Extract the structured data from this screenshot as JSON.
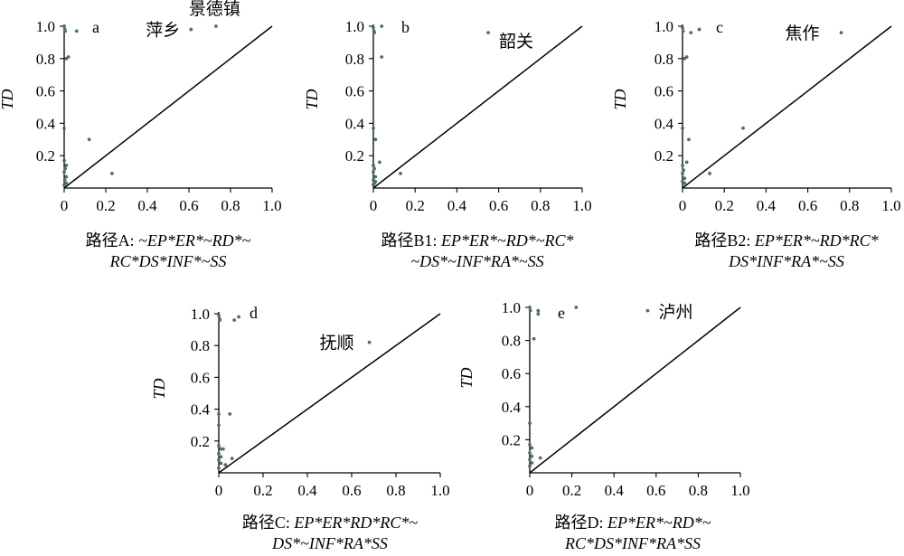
{
  "chart_data": [
    {
      "type": "scatter",
      "panel_label": "a",
      "ylabel": "TD",
      "xlabel_lines": [
        [
          "路径A: ",
          "~EP*ER*~RD*~"
        ],
        [
          "",
          "RC*DS*INF*~SS"
        ]
      ],
      "xlim": [
        0,
        1.0
      ],
      "ylim": [
        0,
        1.0
      ],
      "xticks": [
        "0",
        "0.2",
        "0.4",
        "0.6",
        "0.8",
        "1.0"
      ],
      "yticks": [
        "0.2",
        "0.4",
        "0.6",
        "0.8",
        "1.0"
      ],
      "diagonal": true,
      "points": [
        [
          0.0,
          1.0
        ],
        [
          0.003,
          0.98
        ],
        [
          0.005,
          0.97
        ],
        [
          0.06,
          0.97
        ],
        [
          0.61,
          0.98
        ],
        [
          0.73,
          1.0
        ],
        [
          0.02,
          0.81
        ],
        [
          0.01,
          0.8
        ],
        [
          0.0,
          0.37
        ],
        [
          0.12,
          0.3
        ],
        [
          0.23,
          0.09
        ],
        [
          0.0,
          0.17
        ],
        [
          0.01,
          0.14
        ],
        [
          0.005,
          0.12
        ],
        [
          0.0,
          0.1
        ],
        [
          0.01,
          0.07
        ],
        [
          0.003,
          0.05
        ],
        [
          0.01,
          0.03
        ],
        [
          0.0,
          0.02
        ]
      ],
      "annotations": [
        {
          "text": "萍乡",
          "x": 0.61,
          "y": 0.98
        },
        {
          "text": "景德镇",
          "x": 0.73,
          "y": 1.0
        }
      ]
    },
    {
      "type": "scatter",
      "panel_label": "b",
      "ylabel": "TD",
      "xlabel_lines": [
        [
          "路径B1: ",
          "EP*ER*~RD*~RC*"
        ],
        [
          "",
          "~DS*~INF*RA*~SS"
        ]
      ],
      "xlim": [
        0,
        1.0
      ],
      "ylim": [
        0,
        1.0
      ],
      "xticks": [
        "0",
        "0.2",
        "0.4",
        "0.6",
        "0.8",
        "1.0"
      ],
      "yticks": [
        "0.2",
        "0.4",
        "0.6",
        "0.8",
        "1.0"
      ],
      "diagonal": true,
      "points": [
        [
          0.0,
          0.99
        ],
        [
          0.003,
          0.97
        ],
        [
          0.005,
          0.96
        ],
        [
          0.04,
          1.0
        ],
        [
          0.55,
          0.96
        ],
        [
          0.04,
          0.81
        ],
        [
          0.0,
          0.37
        ],
        [
          0.01,
          0.3
        ],
        [
          0.03,
          0.16
        ],
        [
          0.13,
          0.09
        ],
        [
          0.0,
          0.14
        ],
        [
          0.005,
          0.12
        ],
        [
          0.0,
          0.1
        ],
        [
          0.01,
          0.07
        ],
        [
          0.0,
          0.05
        ],
        [
          0.01,
          0.04
        ],
        [
          0.005,
          0.03
        ],
        [
          0.0,
          0.02
        ]
      ],
      "annotations": [
        {
          "text": "韶关",
          "x": 0.55,
          "y": 0.96
        }
      ]
    },
    {
      "type": "scatter",
      "panel_label": "c",
      "ylabel": "TD",
      "xlabel_lines": [
        [
          "路径B2: ",
          "EP*ER*~RD*RC*"
        ],
        [
          "",
          "DS*INF*RA*~SS"
        ]
      ],
      "xlim": [
        0,
        1.0
      ],
      "ylim": [
        0,
        1.0
      ],
      "xticks": [
        "0",
        "0.2",
        "0.4",
        "0.6",
        "0.8",
        "1.0"
      ],
      "yticks": [
        "0.2",
        "0.4",
        "0.6",
        "0.8",
        "1.0"
      ],
      "diagonal": true,
      "points": [
        [
          0.0,
          0.99
        ],
        [
          0.003,
          0.97
        ],
        [
          0.04,
          0.96
        ],
        [
          0.08,
          0.98
        ],
        [
          0.76,
          0.96
        ],
        [
          0.02,
          0.81
        ],
        [
          0.01,
          0.8
        ],
        [
          0.0,
          0.37
        ],
        [
          0.29,
          0.37
        ],
        [
          0.03,
          0.3
        ],
        [
          0.02,
          0.16
        ],
        [
          0.13,
          0.09
        ],
        [
          0.0,
          0.14
        ],
        [
          0.005,
          0.11
        ],
        [
          0.0,
          0.09
        ],
        [
          0.01,
          0.06
        ],
        [
          0.0,
          0.04
        ],
        [
          0.01,
          0.03
        ]
      ],
      "annotations": [
        {
          "text": "焦作",
          "x": 0.76,
          "y": 0.96
        }
      ]
    },
    {
      "type": "scatter",
      "panel_label": "d",
      "ylabel": "TD",
      "xlabel_lines": [
        [
          "路径C: ",
          "EP*ER*RD*RC*~"
        ],
        [
          "",
          "DS*~INF*RA*SS"
        ]
      ],
      "xlim": [
        0,
        1.0
      ],
      "ylim": [
        0,
        1.0
      ],
      "xticks": [
        "0",
        "0.2",
        "0.4",
        "0.6",
        "0.8",
        "1.0"
      ],
      "yticks": [
        "0.2",
        "0.4",
        "0.6",
        "0.8",
        "1.0"
      ],
      "diagonal": true,
      "points": [
        [
          0.0,
          0.99
        ],
        [
          0.003,
          0.97
        ],
        [
          0.005,
          0.96
        ],
        [
          0.07,
          0.96
        ],
        [
          0.09,
          0.98
        ],
        [
          0.68,
          0.82
        ],
        [
          0.0,
          0.37
        ],
        [
          0.05,
          0.37
        ],
        [
          0.0,
          0.3
        ],
        [
          0.0,
          0.17
        ],
        [
          0.01,
          0.15
        ],
        [
          0.02,
          0.15
        ],
        [
          0.0,
          0.12
        ],
        [
          0.01,
          0.1
        ],
        [
          0.0,
          0.08
        ],
        [
          0.01,
          0.06
        ],
        [
          0.03,
          0.05
        ],
        [
          0.0,
          0.03
        ],
        [
          0.06,
          0.09
        ]
      ],
      "annotations": [
        {
          "text": "抚顺",
          "x": 0.68,
          "y": 0.82
        }
      ]
    },
    {
      "type": "scatter",
      "panel_label": "e",
      "ylabel": "TD",
      "xlabel_lines": [
        [
          "路径D: ",
          "EP*ER*~RD*~"
        ],
        [
          "",
          "RC*DS*INF*RA*SS"
        ]
      ],
      "xlim": [
        0,
        1.0
      ],
      "ylim": [
        0,
        1.0
      ],
      "xticks": [
        "0",
        "0.2",
        "0.4",
        "0.6",
        "0.8",
        "1.0"
      ],
      "yticks": [
        "0.2",
        "0.4",
        "0.6",
        "0.8",
        "1.0"
      ],
      "diagonal": true,
      "points": [
        [
          0.0,
          1.0
        ],
        [
          0.003,
          0.98
        ],
        [
          0.04,
          0.98
        ],
        [
          0.04,
          0.96
        ],
        [
          0.22,
          1.0
        ],
        [
          0.56,
          0.98
        ],
        [
          0.02,
          0.81
        ],
        [
          0.0,
          0.3
        ],
        [
          0.0,
          0.17
        ],
        [
          0.01,
          0.15
        ],
        [
          0.0,
          0.12
        ],
        [
          0.01,
          0.1
        ],
        [
          0.0,
          0.08
        ],
        [
          0.01,
          0.06
        ],
        [
          0.05,
          0.09
        ],
        [
          0.0,
          0.04
        ]
      ],
      "annotations": [
        {
          "text": "泸州",
          "x": 0.56,
          "y": 0.98
        }
      ]
    }
  ]
}
